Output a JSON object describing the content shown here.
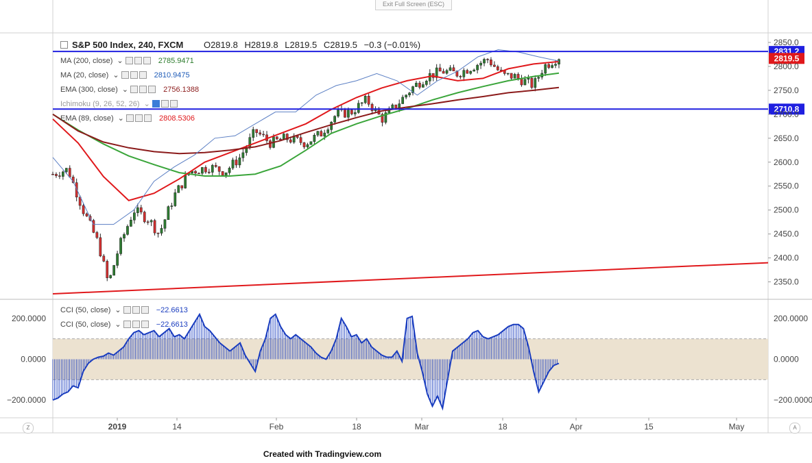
{
  "exit_label": "Exit Full Screen (ESC)",
  "header": {
    "symbol": "S&P 500 Index, 240, FXCM",
    "open": "O2819.8",
    "high": "H2819.8",
    "low": "L2819.5",
    "close": "C2819.5",
    "change": "−0.3 (−0.01%)"
  },
  "indicators": [
    {
      "name": "MA (200, close)",
      "value": "2785.9471",
      "color": "#2a7a2a"
    },
    {
      "name": "MA (20, close)",
      "value": "2810.9475",
      "color": "#1f5cb8"
    },
    {
      "name": "EMA (300, close)",
      "value": "2756.1388",
      "color": "#8b1a1a"
    },
    {
      "name": "Ichimoku (9, 26, 52, 26)",
      "value": "",
      "color": "#888888"
    },
    {
      "name": "EMA (89, close)",
      "value": "2808.5306",
      "color": "#e0181b"
    }
  ],
  "cci_labels": [
    {
      "name": "CCI (50, close)",
      "value": "−22.6613"
    },
    {
      "name": "CCI (50, close)",
      "value": "−22.6613"
    }
  ],
  "footer": "Created with Tradingview.com",
  "corner_left": "Z",
  "corner_right": "A",
  "colors": {
    "candle_up": "#2e7d32",
    "candle_down": "#d32f2f",
    "level_line": "#1f1fe0",
    "trend_line": "#e0181b",
    "cci": "#1a3dbf",
    "cci_band": "#ece2d0",
    "price_label": "#1f1fe0",
    "last_label": "#e0181b"
  },
  "chart_data": {
    "type": "candlestick",
    "price_axis": {
      "ylim": [
        2315,
        2870
      ],
      "ticks": [
        "2850.0",
        "2800.0",
        "2750.0",
        "2700.0",
        "2650.0",
        "2600.0",
        "2550.0",
        "2500.0",
        "2450.0",
        "2400.0",
        "2350.0"
      ]
    },
    "x_axis": {
      "tick_labels": [
        "2019",
        "14",
        "Feb",
        "18",
        "Mar",
        "18",
        "Apr",
        "15",
        "May"
      ],
      "bold_tick": "2019"
    },
    "levels": [
      {
        "label": "2831.2",
        "value": 2831.2
      },
      {
        "label": "2710.8",
        "value": 2710.8
      }
    ],
    "last_price": {
      "label": "2819.5",
      "value": 2819.5
    },
    "trend_line": {
      "from": [
        0,
        2325
      ],
      "to": [
        1.0,
        2390
      ]
    },
    "series": [
      {
        "name": "MA (200, close)",
        "color": "#3aa53a",
        "points": [
          [
            0.0,
            2700
          ],
          [
            0.05,
            2667
          ],
          [
            0.1,
            2638
          ],
          [
            0.15,
            2613
          ],
          [
            0.2,
            2595
          ],
          [
            0.25,
            2578
          ],
          [
            0.3,
            2571
          ],
          [
            0.35,
            2571
          ],
          [
            0.4,
            2575
          ],
          [
            0.45,
            2592
          ],
          [
            0.5,
            2625
          ],
          [
            0.55,
            2660
          ],
          [
            0.6,
            2680
          ],
          [
            0.65,
            2697
          ],
          [
            0.7,
            2712
          ],
          [
            0.75,
            2730
          ],
          [
            0.8,
            2745
          ],
          [
            0.85,
            2758
          ],
          [
            0.9,
            2770
          ],
          [
            0.95,
            2779
          ],
          [
            1.0,
            2786
          ]
        ]
      },
      {
        "name": "EMA (89, close)",
        "color": "#e0181b",
        "points": [
          [
            0.0,
            2690
          ],
          [
            0.05,
            2640
          ],
          [
            0.1,
            2570
          ],
          [
            0.15,
            2520
          ],
          [
            0.2,
            2535
          ],
          [
            0.25,
            2565
          ],
          [
            0.3,
            2600
          ],
          [
            0.35,
            2620
          ],
          [
            0.4,
            2640
          ],
          [
            0.45,
            2660
          ],
          [
            0.5,
            2680
          ],
          [
            0.55,
            2710
          ],
          [
            0.6,
            2735
          ],
          [
            0.65,
            2755
          ],
          [
            0.7,
            2770
          ],
          [
            0.75,
            2780
          ],
          [
            0.8,
            2770
          ],
          [
            0.85,
            2775
          ],
          [
            0.9,
            2795
          ],
          [
            0.95,
            2805
          ],
          [
            1.0,
            2810
          ]
        ]
      },
      {
        "name": "EMA (300, close)",
        "color": "#8b1a1a",
        "points": [
          [
            0.0,
            2700
          ],
          [
            0.05,
            2665
          ],
          [
            0.1,
            2642
          ],
          [
            0.15,
            2630
          ],
          [
            0.2,
            2622
          ],
          [
            0.25,
            2618
          ],
          [
            0.3,
            2620
          ],
          [
            0.35,
            2625
          ],
          [
            0.4,
            2632
          ],
          [
            0.45,
            2645
          ],
          [
            0.5,
            2662
          ],
          [
            0.55,
            2678
          ],
          [
            0.6,
            2693
          ],
          [
            0.65,
            2707
          ],
          [
            0.7,
            2715
          ],
          [
            0.75,
            2722
          ],
          [
            0.8,
            2730
          ],
          [
            0.85,
            2737
          ],
          [
            0.9,
            2745
          ],
          [
            0.95,
            2750
          ],
          [
            1.0,
            2756
          ]
        ]
      },
      {
        "name": "MA (20, close)",
        "color": "#5b7fc4",
        "points": [
          [
            0.0,
            2610
          ],
          [
            0.04,
            2560
          ],
          [
            0.08,
            2470
          ],
          [
            0.12,
            2470
          ],
          [
            0.16,
            2500
          ],
          [
            0.2,
            2560
          ],
          [
            0.24,
            2590
          ],
          [
            0.28,
            2615
          ],
          [
            0.32,
            2650
          ],
          [
            0.36,
            2655
          ],
          [
            0.4,
            2680
          ],
          [
            0.44,
            2705
          ],
          [
            0.48,
            2705
          ],
          [
            0.52,
            2740
          ],
          [
            0.56,
            2760
          ],
          [
            0.6,
            2770
          ],
          [
            0.64,
            2785
          ],
          [
            0.68,
            2770
          ],
          [
            0.72,
            2740
          ],
          [
            0.76,
            2770
          ],
          [
            0.8,
            2790
          ],
          [
            0.84,
            2820
          ],
          [
            0.88,
            2835
          ],
          [
            0.92,
            2830
          ],
          [
            0.96,
            2820
          ],
          [
            1.0,
            2811
          ]
        ]
      }
    ],
    "candle_path": [
      [
        0.0,
        2575
      ],
      [
        0.03,
        2585
      ],
      [
        0.06,
        2500
      ],
      [
        0.09,
        2430
      ],
      [
        0.11,
        2345
      ],
      [
        0.13,
        2420
      ],
      [
        0.16,
        2500
      ],
      [
        0.19,
        2480
      ],
      [
        0.21,
        2450
      ],
      [
        0.24,
        2530
      ],
      [
        0.27,
        2580
      ],
      [
        0.31,
        2590
      ],
      [
        0.34,
        2580
      ],
      [
        0.37,
        2610
      ],
      [
        0.4,
        2665
      ],
      [
        0.43,
        2640
      ],
      [
        0.46,
        2650
      ],
      [
        0.5,
        2640
      ],
      [
        0.53,
        2660
      ],
      [
        0.56,
        2700
      ],
      [
        0.59,
        2705
      ],
      [
        0.62,
        2730
      ],
      [
        0.65,
        2690
      ],
      [
        0.68,
        2720
      ],
      [
        0.71,
        2755
      ],
      [
        0.74,
        2780
      ],
      [
        0.77,
        2790
      ],
      [
        0.8,
        2785
      ],
      [
        0.83,
        2800
      ],
      [
        0.86,
        2815
      ],
      [
        0.89,
        2780
      ],
      [
        0.91,
        2780
      ],
      [
        0.93,
        2770
      ],
      [
        0.95,
        2760
      ],
      [
        0.97,
        2800
      ],
      [
        1.0,
        2820
      ]
    ]
  },
  "cci_data": {
    "type": "area",
    "ylim": [
      -280,
      290
    ],
    "ticks": [
      "200.0000",
      "0.0000",
      "−200.0000"
    ],
    "band": [
      -100,
      100
    ],
    "values": [
      -200,
      -190,
      -170,
      -160,
      -130,
      -140,
      -60,
      -20,
      0,
      10,
      15,
      30,
      20,
      40,
      60,
      100,
      130,
      140,
      120,
      130,
      140,
      110,
      130,
      150,
      110,
      120,
      100,
      140,
      180,
      220,
      160,
      140,
      110,
      80,
      60,
      40,
      60,
      80,
      20,
      -20,
      -60,
      40,
      100,
      200,
      220,
      160,
      120,
      100,
      120,
      100,
      80,
      60,
      30,
      10,
      0,
      40,
      100,
      200,
      160,
      110,
      120,
      80,
      100,
      60,
      40,
      20,
      10,
      10,
      40,
      -10,
      200,
      210,
      30,
      -60,
      -170,
      -230,
      -180,
      -240,
      -100,
      40,
      60,
      80,
      100,
      130,
      140,
      110,
      100,
      110,
      120,
      140,
      160,
      170,
      170,
      150,
      60,
      -60,
      -160,
      -110,
      -60,
      -30,
      -20
    ]
  }
}
